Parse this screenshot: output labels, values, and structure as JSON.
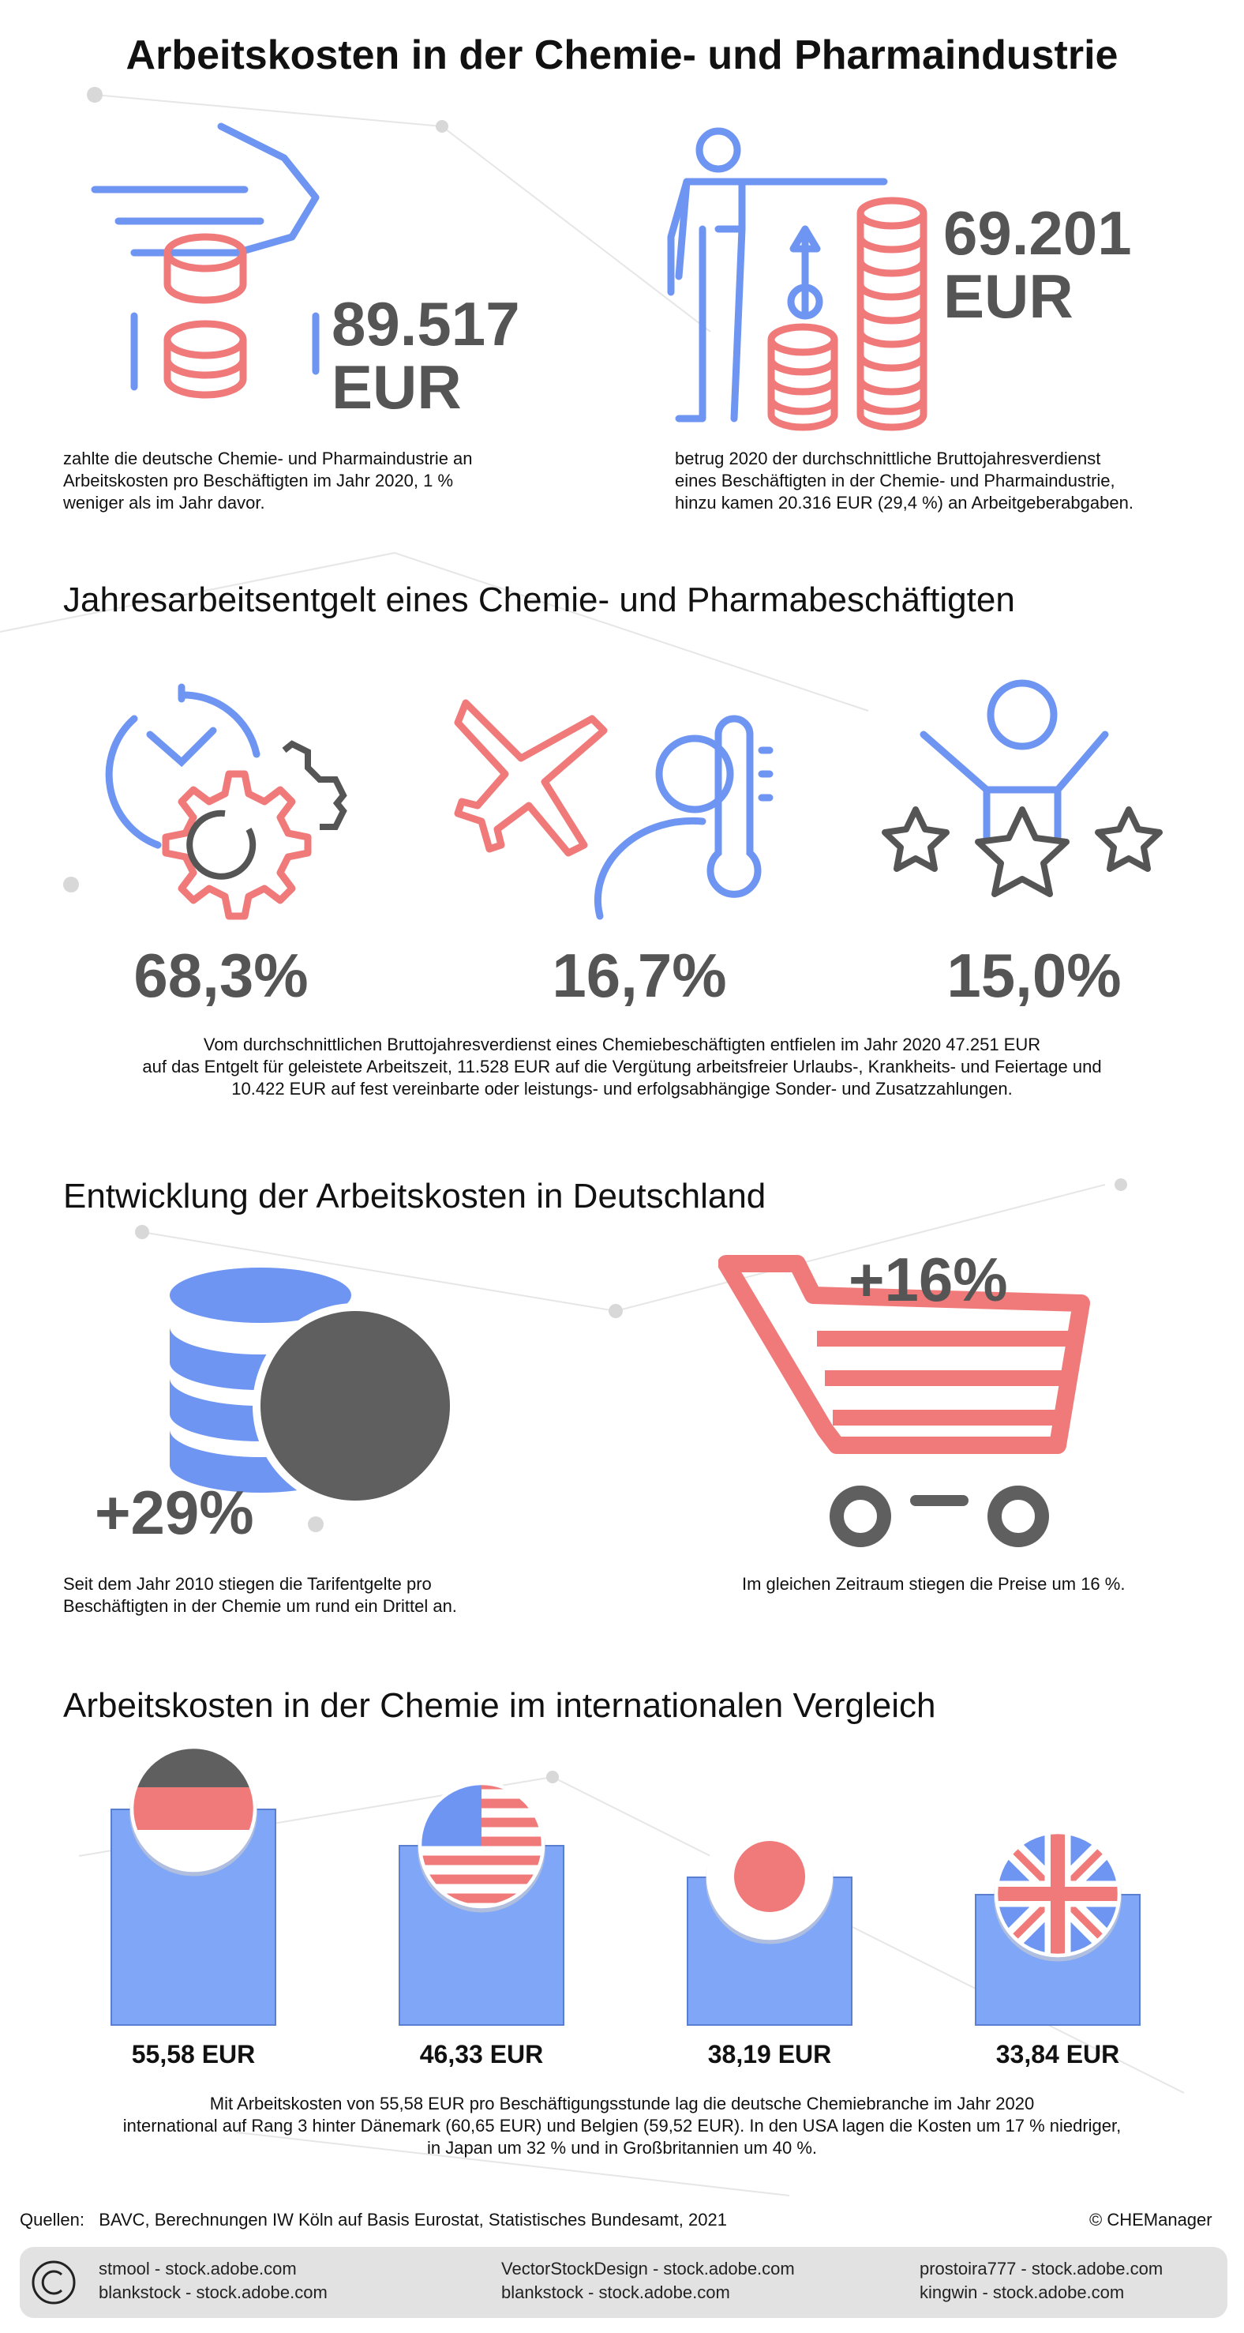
{
  "title": "Arbeitskosten in der Chemie- und Pharmaindustrie",
  "section1": {
    "stat_left_value": "89.517",
    "stat_left_unit": "EUR",
    "stat_left_text_1": "zahlte die deutsche Chemie- und Pharmaindustrie an",
    "stat_left_text_2": "Arbeitskosten pro Beschäftigten im Jahr 2020, 1 %",
    "stat_left_text_3": "weniger als im Jahr davor.",
    "stat_right_value": "69.201",
    "stat_right_unit": "EUR",
    "stat_right_text_1": "betrug 2020 der durchschnittliche Bruttojahresverdienst",
    "stat_right_text_2": "eines Beschäftigten in der Chemie- und Pharmaindustrie,",
    "stat_right_text_3": "hinzu kamen 20.316 EUR (29,4 %) an Arbeitgeberabgaben."
  },
  "section2": {
    "heading": "Jahresarbeitsentgelt eines Chemie- und Pharmabeschäftigten",
    "pct_work": "68,3%",
    "pct_vacation": "16,7%",
    "pct_bonus": "15,0%",
    "text_1": "Vom durchschnittlichen Bruttojahresverdienst eines Chemiebeschäftigten entfielen im Jahr 2020 47.251 EUR",
    "text_2": "auf das Entgelt für geleistete Arbeitszeit, 11.528 EUR auf die Vergütung arbeitsfreier Urlaubs-, Krankheits- und Feiertage und",
    "text_3": "10.422 EUR auf fest vereinbarte oder leistungs- und erfolgsabhängige Sonder- und Zusatzzahlungen."
  },
  "section3": {
    "heading": "Entwicklung der Arbeitskosten in Deutschland",
    "left_pct": "+29%",
    "left_text_1": "Seit dem Jahr 2010 stiegen die Tarifentgelte pro",
    "left_text_2": "Beschäftigten in der Chemie um rund ein Drittel an.",
    "right_pct": "+16%",
    "right_text": "Im gleichen Zeitraum stiegen die Preise um 16 %."
  },
  "section4": {
    "heading": "Arbeitskosten in der Chemie im internationalen Vergleich",
    "bars": [
      {
        "flag": "germany-flag",
        "value": 55.58,
        "label": "55,58 EUR"
      },
      {
        "flag": "usa-flag",
        "value": 46.33,
        "label": "46,33 EUR"
      },
      {
        "flag": "japan-flag",
        "value": 38.19,
        "label": "38,19 EUR"
      },
      {
        "flag": "uk-flag",
        "value": 33.84,
        "label": "33,84 EUR"
      }
    ],
    "text_1": "Mit Arbeitskosten von 55,58 EUR pro Beschäftigungsstunde lag die deutsche Chemiebranche im Jahr 2020",
    "text_2": "international auf Rang 3 hinter Dänemark (60,65 EUR) und Belgien (59,52 EUR). In den USA lagen die Kosten um 17 % niedriger,",
    "text_3": "in Japan um 32 % und in Großbritannien um 40 %."
  },
  "footer": {
    "sources": "Quellen:   BAVC, Berechnungen IW Köln auf Basis Eurostat, Statistisches Bundesamt, 2021",
    "copyright": "© CHEManager",
    "credit_1a": "stmool - stock.adobe.com",
    "credit_1b": "blankstock - stock.adobe.com",
    "credit_2a": "VectorStockDesign - stock.adobe.com",
    "credit_2b": "blankstock - stock.adobe.com",
    "credit_3a": "prostoira777 - stock.adobe.com",
    "credit_3b": "kingwin - stock.adobe.com"
  },
  "colors": {
    "blue": "#6f95f2",
    "red": "#f07a7a",
    "gray": "#555555"
  }
}
